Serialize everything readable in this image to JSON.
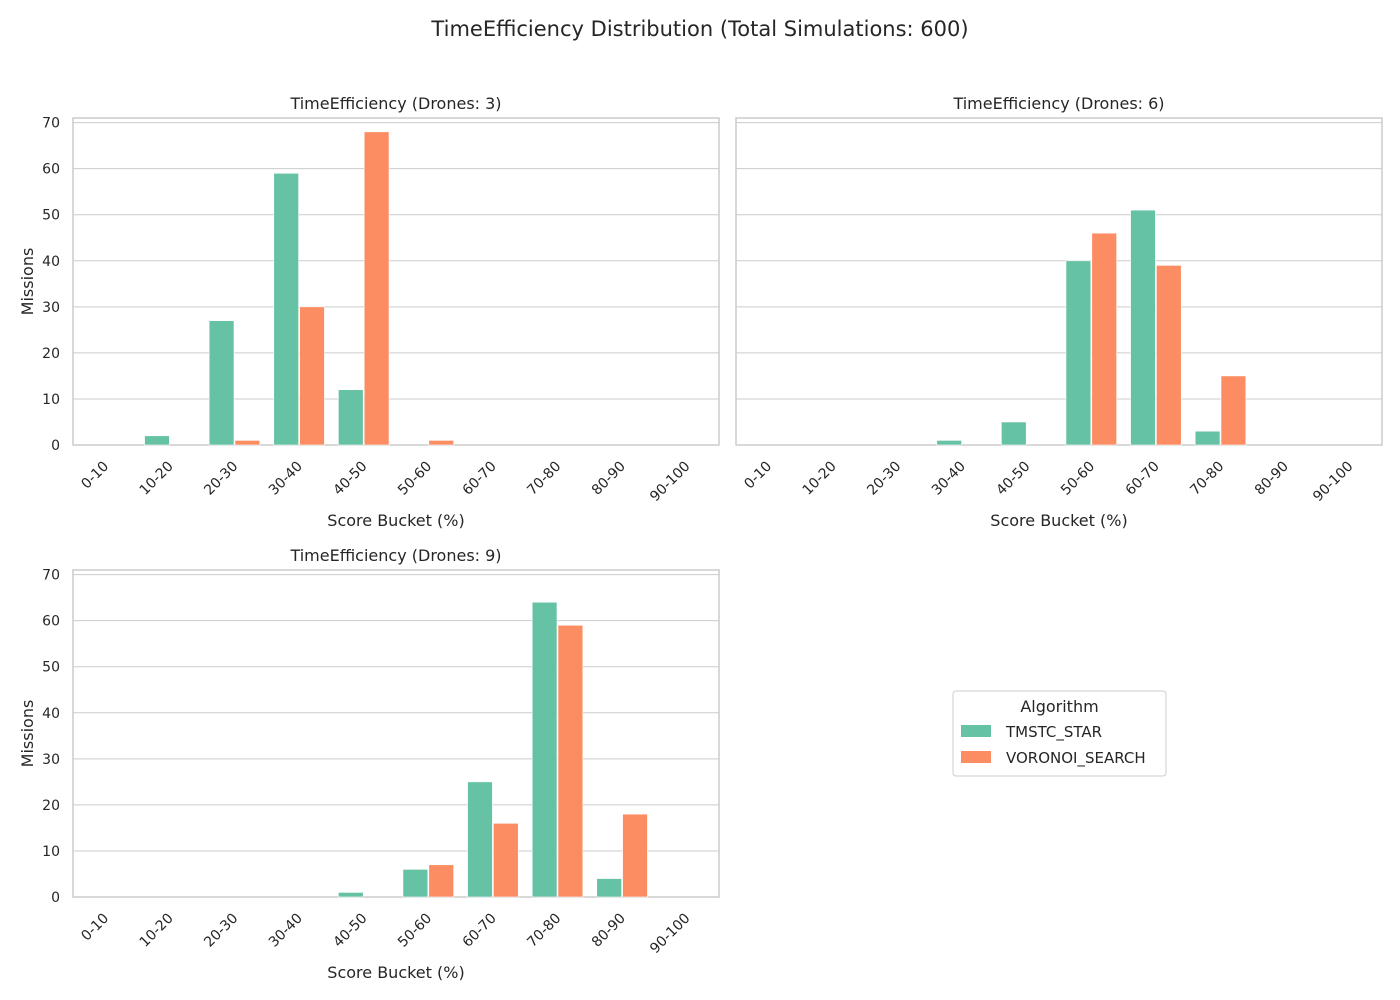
{
  "figure": {
    "title": "TimeEfficiency Distribution (Total Simulations: 600)"
  },
  "legend": {
    "title": "Algorithm",
    "placement": "empty fourth panel, center",
    "entries": [
      "TMSTC_STAR",
      "VORONOI_SEARCH"
    ]
  },
  "colors": {
    "TMSTC_STAR": "#66c2a5",
    "VORONOI_SEARCH": "#fc8d62",
    "grid": "#cccccc",
    "frame": "#cccccc",
    "background": "#ffffff"
  },
  "chart_data": [
    {
      "type": "bar",
      "title": "TimeEfficiency (Drones: 3)",
      "xlabel": "Score Bucket (%)",
      "ylabel": "Missions",
      "ylim": [
        0,
        71
      ],
      "yticks": [
        0,
        10,
        20,
        30,
        40,
        50,
        60,
        70
      ],
      "grid": true,
      "categories": [
        "0-10",
        "10-20",
        "20-30",
        "30-40",
        "40-50",
        "50-60",
        "60-70",
        "70-80",
        "80-90",
        "90-100"
      ],
      "series": [
        {
          "name": "TMSTC_STAR",
          "values": [
            0,
            2,
            27,
            59,
            12,
            0,
            0,
            0,
            0,
            0
          ]
        },
        {
          "name": "VORONOI_SEARCH",
          "values": [
            0,
            0,
            1,
            30,
            68,
            1,
            0,
            0,
            0,
            0
          ]
        }
      ]
    },
    {
      "type": "bar",
      "title": "TimeEfficiency (Drones: 6)",
      "xlabel": "Score Bucket (%)",
      "ylabel": "",
      "ylim": [
        0,
        71
      ],
      "yticks": [
        0,
        10,
        20,
        30,
        40,
        50,
        60,
        70
      ],
      "grid": true,
      "categories": [
        "0-10",
        "10-20",
        "20-30",
        "30-40",
        "40-50",
        "50-60",
        "60-70",
        "70-80",
        "80-90",
        "90-100"
      ],
      "series": [
        {
          "name": "TMSTC_STAR",
          "values": [
            0,
            0,
            0,
            1,
            5,
            40,
            51,
            3,
            0,
            0
          ]
        },
        {
          "name": "VORONOI_SEARCH",
          "values": [
            0,
            0,
            0,
            0,
            0,
            46,
            39,
            15,
            0,
            0
          ]
        }
      ]
    },
    {
      "type": "bar",
      "title": "TimeEfficiency (Drones: 9)",
      "xlabel": "Score Bucket (%)",
      "ylabel": "Missions",
      "ylim": [
        0,
        71
      ],
      "yticks": [
        0,
        10,
        20,
        30,
        40,
        50,
        60,
        70
      ],
      "grid": true,
      "categories": [
        "0-10",
        "10-20",
        "20-30",
        "30-40",
        "40-50",
        "50-60",
        "60-70",
        "70-80",
        "80-90",
        "90-100"
      ],
      "series": [
        {
          "name": "TMSTC_STAR",
          "values": [
            0,
            0,
            0,
            0,
            1,
            6,
            25,
            64,
            4,
            0
          ]
        },
        {
          "name": "VORONOI_SEARCH",
          "values": [
            0,
            0,
            0,
            0,
            0,
            7,
            16,
            59,
            18,
            0
          ]
        }
      ]
    }
  ]
}
